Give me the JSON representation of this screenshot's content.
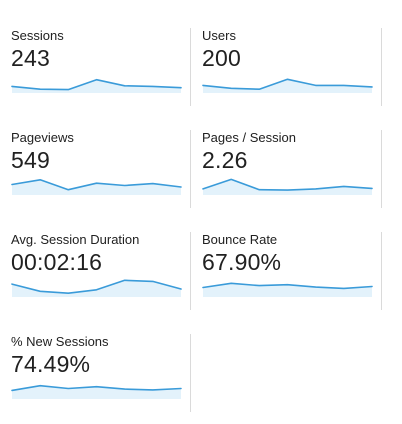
{
  "metrics": [
    {
      "id": "sessions",
      "label": "Sessions",
      "value": "243",
      "trend": [
        0.35,
        0.2,
        0.18,
        0.7,
        0.38,
        0.35,
        0.28
      ]
    },
    {
      "id": "users",
      "label": "Users",
      "value": "200",
      "trend": [
        0.4,
        0.25,
        0.2,
        0.72,
        0.4,
        0.4,
        0.32
      ]
    },
    {
      "id": "pageviews",
      "label": "Pageviews",
      "value": "549",
      "trend": [
        0.55,
        0.8,
        0.28,
        0.62,
        0.5,
        0.6,
        0.42
      ]
    },
    {
      "id": "pages-per-session",
      "label": "Pages / Session",
      "value": "2.26",
      "trend": [
        0.32,
        0.82,
        0.28,
        0.26,
        0.32,
        0.45,
        0.35
      ]
    },
    {
      "id": "avg-session-duration",
      "label": "Avg. Session Duration",
      "value": "00:02:16",
      "trend": [
        0.68,
        0.3,
        0.2,
        0.38,
        0.88,
        0.82,
        0.42
      ]
    },
    {
      "id": "bounce-rate",
      "label": "Bounce Rate",
      "value": "67.90%",
      "trend": [
        0.5,
        0.72,
        0.6,
        0.65,
        0.52,
        0.45,
        0.55
      ]
    },
    {
      "id": "new-sessions",
      "label": "% New Sessions",
      "value": "74.49%",
      "trend": [
        0.45,
        0.7,
        0.55,
        0.65,
        0.52,
        0.48,
        0.55
      ]
    }
  ],
  "colors": {
    "line": "#3a9bd9",
    "fill": "#e3f2fb",
    "divider": "#dadada",
    "text": "#212121"
  }
}
